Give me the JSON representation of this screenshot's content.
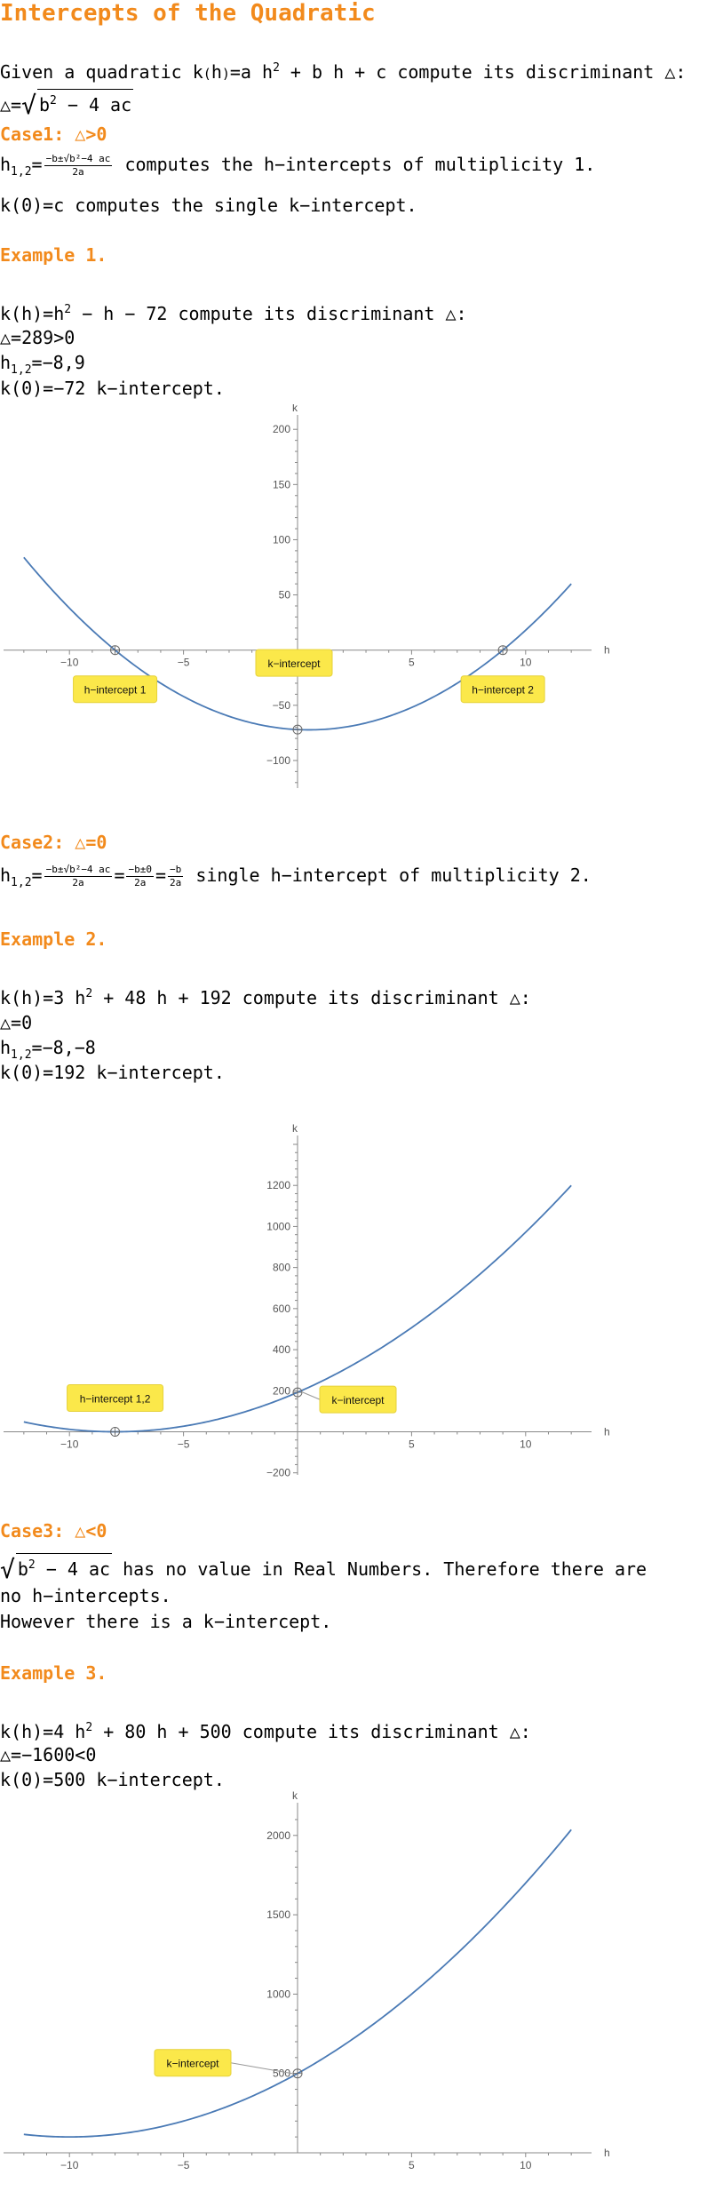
{
  "title": "Intercepts of the Quadratic",
  "intro": {
    "given_prefix": "Given a quadratic k",
    "given_h": "h",
    "given_eq": "=a h",
    "given_sup": "2",
    "given_rest": " + b h + c compute its discriminant △:",
    "disc_prefix": "△=",
    "disc_b": "b",
    "disc_sup": "2",
    "disc_rest": " − 4 ac"
  },
  "case1": {
    "heading": "Case1: △>0",
    "h_label": "h",
    "h_sub": "1,2",
    "eq": "=",
    "frac_num": "−b±√b²−4 ac",
    "frac_den": "2a",
    "h_text": " computes the h−intercepts of multiplicity 1.",
    "k_text": "k(0)=c computes the single k−intercept."
  },
  "example1": {
    "heading": "Example 1.",
    "line1_a": "k(h)=h",
    "line1_sup": "2",
    "line1_b": " − h − 72 compute its discriminant △:",
    "line2": "△=289>0",
    "line3_h": "h",
    "line3_sub": "1,2",
    "line3_rest": "=−8,9",
    "line4": "k(0)=−72 k−intercept."
  },
  "case2": {
    "heading": "Case2: △=0",
    "h_label": "h",
    "h_sub": "1,2",
    "eq": "=",
    "frac1_num": "−b±√b²−4 ac",
    "frac1_den": "2a",
    "frac2_num": "−b±0",
    "frac2_den": "2a",
    "frac3_num": "−b",
    "frac3_den": "2a",
    "text": " single h−intercept of multiplicity 2."
  },
  "example2": {
    "heading": "Example 2.",
    "line1_a": "k(h)=3 h",
    "line1_sup": "2",
    "line1_b": " + 48 h + 192 compute its discriminant △:",
    "line2": "△=0",
    "line3_h": "h",
    "line3_sub": "1,2",
    "line3_rest": "=−8,−8",
    "line4": "k(0)=192 k−intercept."
  },
  "case3": {
    "heading": "Case3: △<0",
    "sqrt_b": "b",
    "sqrt_sup": "2",
    "sqrt_rest": " − 4 ac",
    "text1": " has no value in Real Numbers. Therefore there are",
    "text2": "no h−intercepts.",
    "text3": "However there is a k−intercept."
  },
  "example3": {
    "heading": "Example 3.",
    "line1_a": "k(h)=4 h",
    "line1_sup": "2",
    "line1_b": " + 80 h + 500 compute its discriminant △:",
    "line2": "△=−1600<0",
    "line3": "k(0)=500 k−intercept."
  },
  "colors": {
    "heading": "#f28a1c",
    "curve": "#4a7ab5",
    "label_bg": "#fbe84a",
    "axis": "#888888"
  },
  "chart_data": [
    {
      "type": "line",
      "function": "k(h)=h^2-h-72",
      "coefficients": [
        1,
        -1,
        -72
      ],
      "xlabel": "h",
      "ylabel": "k",
      "xlim": [
        -12.5,
        12.5
      ],
      "ylim": [
        -125,
        205
      ],
      "xticks": [
        -10,
        -5,
        5,
        10
      ],
      "xtick_labels": [
        "−10",
        "−5",
        "5",
        "10"
      ],
      "yticks": [
        200,
        150,
        100,
        50,
        -50,
        -100
      ],
      "ytick_labels": [
        "200",
        "150",
        "100",
        "50",
        "−50",
        "−100"
      ],
      "points": [
        {
          "x": -8,
          "y": 0,
          "label": "h−intercept 1"
        },
        {
          "x": 9,
          "y": 0,
          "label": "h−intercept 2"
        },
        {
          "x": 0,
          "y": -72,
          "label": "k−intercept"
        }
      ]
    },
    {
      "type": "line",
      "function": "k(h)=3h^2+48h+192",
      "coefficients": [
        3,
        48,
        192
      ],
      "xlabel": "h",
      "ylabel": "k",
      "xlim": [
        -12.5,
        12.5
      ],
      "ylim": [
        -210,
        1400
      ],
      "xticks": [
        -10,
        -5,
        5,
        10
      ],
      "xtick_labels": [
        "−10",
        "−5",
        "5",
        "10"
      ],
      "yticks": [
        1200,
        1000,
        800,
        600,
        400,
        200,
        -200
      ],
      "ytick_labels": [
        "1200",
        "1000",
        "800",
        "600",
        "400",
        "200",
        "−200"
      ],
      "points": [
        {
          "x": -8,
          "y": 0,
          "label": "h−intercept 1,2"
        },
        {
          "x": 0,
          "y": 192,
          "label": "k−intercept"
        }
      ]
    },
    {
      "type": "line",
      "function": "k(h)=4h^2+80h+500",
      "coefficients": [
        4,
        80,
        500
      ],
      "xlabel": "h",
      "ylabel": "k",
      "xlim": [
        -12.5,
        12.5
      ],
      "ylim": [
        0,
        2150
      ],
      "xticks": [
        -10,
        -5,
        5,
        10
      ],
      "xtick_labels": [
        "−10",
        "−5",
        "5",
        "10"
      ],
      "yticks": [
        2000,
        1500,
        1000,
        500
      ],
      "ytick_labels": [
        "2000",
        "1500",
        "1000",
        "500"
      ],
      "points": [
        {
          "x": 0,
          "y": 500,
          "label": "k−intercept"
        }
      ]
    }
  ]
}
